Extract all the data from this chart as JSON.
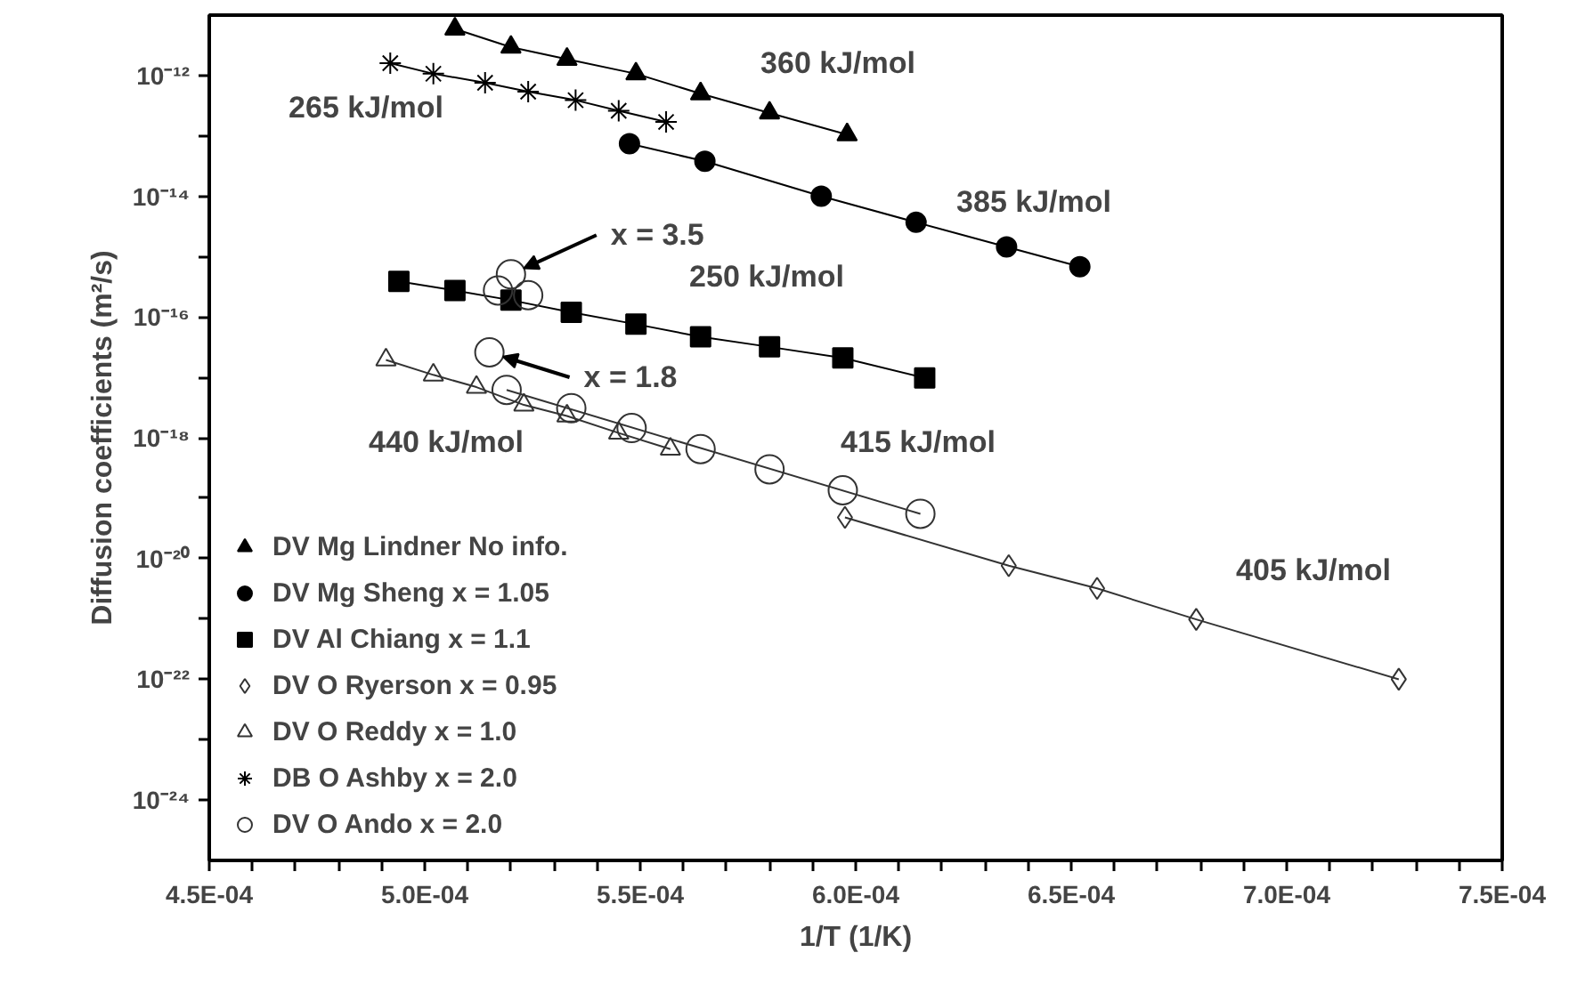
{
  "chart_data": {
    "type": "line",
    "xlabel": "1/T (1/K)",
    "ylabel": "Diffusion coefficients (m²/s)",
    "log": "y",
    "grid": false,
    "legend": "bottom left",
    "xlim": [
      0.00045,
      0.00075
    ],
    "xticks": [
      {
        "value": 0.00045,
        "label": "4.5E-04"
      },
      {
        "value": 0.00046,
        "label": null
      },
      {
        "value": 0.00047,
        "label": null
      },
      {
        "value": 0.00048,
        "label": null
      },
      {
        "value": 0.00049,
        "label": null
      },
      {
        "value": 0.0005,
        "label": "5.0E-04"
      },
      {
        "value": 0.00051,
        "label": null
      },
      {
        "value": 0.00052,
        "label": null
      },
      {
        "value": 0.00053,
        "label": null
      },
      {
        "value": 0.00054,
        "label": null
      },
      {
        "value": 0.00055,
        "label": "5.5E-04"
      },
      {
        "value": 0.00056,
        "label": null
      },
      {
        "value": 0.00057,
        "label": null
      },
      {
        "value": 0.00058,
        "label": null
      },
      {
        "value": 0.00059,
        "label": null
      },
      {
        "value": 0.0006,
        "label": "6.0E-04"
      },
      {
        "value": 0.00061,
        "label": null
      },
      {
        "value": 0.00062,
        "label": null
      },
      {
        "value": 0.00063,
        "label": null
      },
      {
        "value": 0.00064,
        "label": null
      },
      {
        "value": 0.00065,
        "label": "6.5E-04"
      },
      {
        "value": 0.00066,
        "label": null
      },
      {
        "value": 0.00067,
        "label": null
      },
      {
        "value": 0.00068,
        "label": null
      },
      {
        "value": 0.00069,
        "label": null
      },
      {
        "value": 0.0007,
        "label": "7.0E-04"
      },
      {
        "value": 0.00071,
        "label": null
      },
      {
        "value": 0.00072,
        "label": null
      },
      {
        "value": 0.00073,
        "label": null
      },
      {
        "value": 0.00074,
        "label": null
      },
      {
        "value": 0.00075,
        "label": "7.5E-04"
      }
    ],
    "ylim": [
      1e-25,
      1e-11
    ],
    "yticks": [
      {
        "value": 1e-12,
        "label": "10⁻¹²"
      },
      {
        "value": 1e-13,
        "label": null
      },
      {
        "value": 1e-14,
        "label": "10⁻¹⁴"
      },
      {
        "value": 1e-15,
        "label": null
      },
      {
        "value": 1e-16,
        "label": "10⁻¹⁶"
      },
      {
        "value": 1e-17,
        "label": null
      },
      {
        "value": 1e-18,
        "label": "10⁻¹⁸"
      },
      {
        "value": 1e-19,
        "label": null
      },
      {
        "value": 1e-20,
        "label": "10⁻²⁰"
      },
      {
        "value": 1e-21,
        "label": null
      },
      {
        "value": 1e-22,
        "label": "10⁻²²"
      },
      {
        "value": 1e-23,
        "label": null
      },
      {
        "value": 1e-24,
        "label": "10⁻²⁴"
      }
    ],
    "series": [
      {
        "name": "DV Mg Lindner No info.",
        "color": "#000000",
        "marker": "triangle",
        "x": [
          0.000507,
          0.00052,
          0.000533,
          0.000549,
          0.000564,
          0.00058,
          0.000598
        ],
        "values": [
          5.9e-12,
          2.95e-12,
          1.86e-12,
          1.07e-12,
          5e-13,
          2.4e-13,
          1.05e-13
        ]
      },
      {
        "name": "DV Mg Sheng x = 1.05",
        "color": "#000000",
        "marker": "circle",
        "x": [
          0.0005475,
          0.000565,
          0.000592,
          0.000614,
          0.000635,
          0.000652
        ],
        "values": [
          7.4e-14,
          3.8e-14,
          1e-14,
          3.7e-15,
          1.45e-15,
          6.8e-16
        ]
      },
      {
        "name": "DV Al Chiang x = 1.1",
        "color": "#000000",
        "marker": "square",
        "x": [
          0.000494,
          0.000507,
          0.00052,
          0.000534,
          0.000549,
          0.000564,
          0.00058,
          0.000597,
          0.000616
        ],
        "values": [
          3.9e-16,
          2.75e-16,
          1.9e-16,
          1.2e-16,
          7.6e-17,
          4.7e-17,
          3.2e-17,
          2.1e-17,
          9.8e-18
        ]
      },
      {
        "name": "DV O Ryerson x = 0.95",
        "color": "#333333",
        "marker": "diamond",
        "x": [
          0.0005975,
          0.0006355,
          0.000656,
          0.000679,
          0.000726
        ],
        "values": [
          4.8e-20,
          7.6e-21,
          3.2e-21,
          9.8e-22,
          1e-22
        ]
      },
      {
        "name": "DV O Reddy x = 1.0",
        "color": "#333333",
        "marker": "triangle",
        "x": [
          0.000491,
          0.000502,
          0.000512,
          0.000523,
          0.000533,
          0.000545,
          0.000557
        ],
        "values": [
          1.95e-17,
          1.1e-17,
          6.9e-18,
          3.5e-18,
          2.3e-18,
          1.2e-18,
          6.5e-19
        ]
      },
      {
        "name": "DV O Ando x = 2.0",
        "color": "#333333",
        "type": "scatter",
        "marker": "circle",
        "x": [
          0.000515,
          0.000517,
          0.000519,
          0.00052,
          0.000524,
          0.000534,
          0.000548,
          0.000564,
          0.00058,
          0.000597,
          0.000615
        ],
        "values": [
          2.6e-17,
          2.75e-16,
          6.2e-18,
          5.1e-16,
          2.3e-16,
          3.1e-18,
          1.45e-18,
          6.5e-19,
          3e-19,
          1.35e-19,
          5.5e-20
        ]
      },
      {
        "color": "#333333",
        "type": "line",
        "marker": "none",
        "x": [
          0.000519,
          0.000615
        ],
        "values": [
          6.2e-18,
          5.5e-20
        ]
      },
      {
        "name": "DB O Ashby x = 2.0",
        "color": "#000000",
        "marker": "cross",
        "x": [
          0.000492,
          0.000502,
          0.000514,
          0.000524,
          0.000535,
          0.000545,
          0.000556
        ],
        "values": [
          1.6e-12,
          1.07e-12,
          7.6e-13,
          5.4e-13,
          3.9e-13,
          2.6e-13,
          1.7e-13
        ]
      }
    ],
    "annotations": [
      "360 kJ/mol",
      "265 kJ/mol",
      "385 kJ/mol",
      {
        "text": "x = 3.5",
        "x": 0.00052,
        "y": 5.1e-16
      },
      "250 kJ/mol",
      {
        "text": "x = 1.8",
        "x": 0.000515,
        "y": 2.6e-17
      },
      "440 kJ/mol",
      "415 kJ/mol",
      "405 kJ/mol"
    ]
  }
}
